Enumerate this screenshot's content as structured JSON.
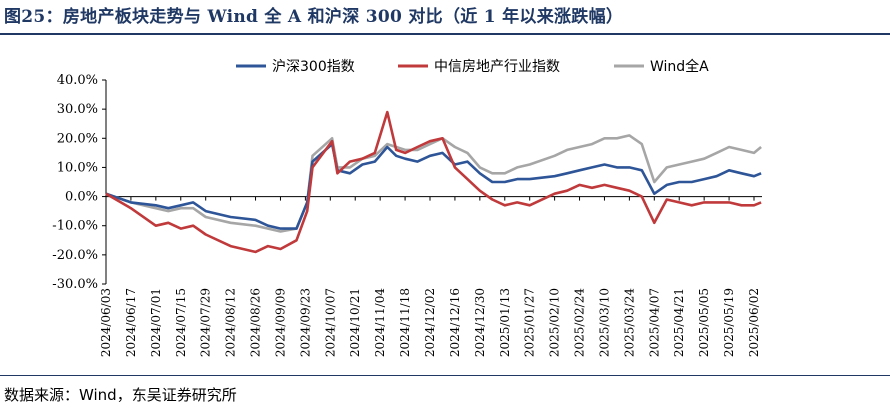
{
  "figure": {
    "title": "图25：房地产板块走势与 Wind 全 A 和沪深 300 对比（近 1 年以来涨跌幅）",
    "source": "数据来源：Wind，东吴证券研究所"
  },
  "colors": {
    "title": "#1f3864",
    "hs300": "#2e5597",
    "realestate": "#c0393b",
    "windA": "#a6a6a6"
  },
  "chart_data": {
    "type": "line",
    "title": "",
    "xlabel": "",
    "ylabel": "",
    "ylim": [
      -0.3,
      0.4
    ],
    "y_ticks": [
      0.4,
      0.3,
      0.2,
      0.1,
      0.0,
      -0.1,
      -0.2,
      -0.3
    ],
    "y_tick_labels": [
      "40.0%",
      "30.0%",
      "20.0%",
      "10.0%",
      "0.0%",
      "-10.0%",
      "-20.0%",
      "-30.0%"
    ],
    "x_tick_labels": [
      "2024/06/03",
      "2024/06/17",
      "2024/07/01",
      "2024/07/15",
      "2024/07/29",
      "2024/08/12",
      "2024/08/26",
      "2024/09/09",
      "2024/09/23",
      "2024/10/07",
      "2024/10/21",
      "2024/11/04",
      "2024/11/18",
      "2024/12/02",
      "2024/12/16",
      "2024/12/30",
      "2025/01/13",
      "2025/01/27",
      "2025/02/10",
      "2025/02/24",
      "2025/03/10",
      "2025/03/24",
      "2025/04/07",
      "2025/04/21",
      "2025/05/05",
      "2025/05/19",
      "2025/06/02"
    ],
    "x": [
      "2024/06/03",
      "2024/06/17",
      "2024/07/01",
      "2024/07/08",
      "2024/07/15",
      "2024/07/22",
      "2024/07/29",
      "2024/08/12",
      "2024/08/26",
      "2024/09/02",
      "2024/09/09",
      "2024/09/18",
      "2024/09/24",
      "2024/09/27",
      "2024/10/08",
      "2024/10/11",
      "2024/10/18",
      "2024/10/25",
      "2024/11/01",
      "2024/11/08",
      "2024/11/13",
      "2024/11/18",
      "2024/11/25",
      "2024/12/02",
      "2024/12/09",
      "2024/12/16",
      "2024/12/23",
      "2024/12/30",
      "2025/01/06",
      "2025/01/13",
      "2025/01/20",
      "2025/01/27",
      "2025/02/10",
      "2025/02/17",
      "2025/02/24",
      "2025/03/03",
      "2025/03/10",
      "2025/03/17",
      "2025/03/24",
      "2025/03/31",
      "2025/04/07",
      "2025/04/14",
      "2025/04/21",
      "2025/04/28",
      "2025/05/05",
      "2025/05/12",
      "2025/05/19",
      "2025/05/26",
      "2025/06/02",
      "2025/06/06"
    ],
    "series": [
      {
        "name": "沪深300指数",
        "color": "#2e5597",
        "values": [
          0.01,
          -0.02,
          -0.03,
          -0.04,
          -0.03,
          -0.02,
          -0.05,
          -0.07,
          -0.08,
          -0.1,
          -0.11,
          -0.11,
          -0.02,
          0.12,
          0.18,
          0.09,
          0.08,
          0.11,
          0.12,
          0.17,
          0.14,
          0.13,
          0.12,
          0.14,
          0.15,
          0.11,
          0.12,
          0.08,
          0.05,
          0.05,
          0.06,
          0.06,
          0.07,
          0.08,
          0.09,
          0.1,
          0.11,
          0.1,
          0.1,
          0.09,
          0.01,
          0.04,
          0.05,
          0.05,
          0.06,
          0.07,
          0.09,
          0.08,
          0.07,
          0.08
        ]
      },
      {
        "name": "中信房地产行业指数",
        "color": "#c0393b",
        "values": [
          0.01,
          -0.04,
          -0.1,
          -0.09,
          -0.11,
          -0.1,
          -0.13,
          -0.17,
          -0.19,
          -0.17,
          -0.18,
          -0.15,
          -0.05,
          0.1,
          0.19,
          0.08,
          0.12,
          0.13,
          0.15,
          0.29,
          0.16,
          0.15,
          0.17,
          0.19,
          0.2,
          0.1,
          0.06,
          0.02,
          -0.01,
          -0.03,
          -0.02,
          -0.03,
          0.01,
          0.02,
          0.04,
          0.03,
          0.04,
          0.03,
          0.02,
          0.0,
          -0.09,
          -0.01,
          -0.02,
          -0.03,
          -0.02,
          -0.02,
          -0.02,
          -0.03,
          -0.03,
          -0.02
        ]
      },
      {
        "name": "Wind全A",
        "color": "#a6a6a6",
        "values": [
          0.01,
          -0.02,
          -0.04,
          -0.05,
          -0.04,
          -0.04,
          -0.07,
          -0.09,
          -0.1,
          -0.11,
          -0.12,
          -0.11,
          -0.02,
          0.14,
          0.2,
          0.1,
          0.1,
          0.13,
          0.14,
          0.18,
          0.17,
          0.16,
          0.16,
          0.18,
          0.2,
          0.17,
          0.15,
          0.1,
          0.08,
          0.08,
          0.1,
          0.11,
          0.14,
          0.16,
          0.17,
          0.18,
          0.2,
          0.2,
          0.21,
          0.18,
          0.05,
          0.1,
          0.11,
          0.12,
          0.13,
          0.15,
          0.17,
          0.16,
          0.15,
          0.17
        ]
      }
    ],
    "grid": false,
    "legend_position": "top"
  }
}
